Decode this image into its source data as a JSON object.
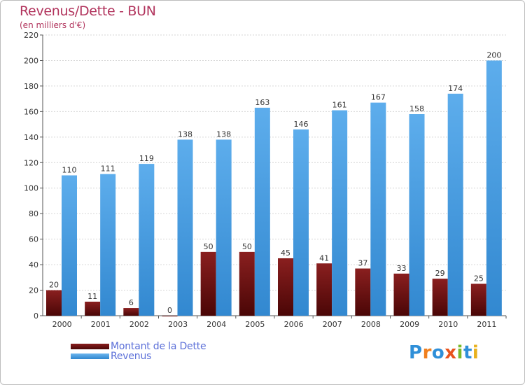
{
  "header": {
    "title": "Revenus/Dette - BUN",
    "subtitle": "(en milliers d'€)"
  },
  "legend": {
    "items": [
      {
        "label": "Montant de la Dette",
        "color": "#6b0e0e"
      },
      {
        "label": "Revenus",
        "color": "#4a9ee0"
      }
    ]
  },
  "logo": {
    "text": "Proxiti",
    "letter_colors": [
      "#2f8fd8",
      "#f07f1e",
      "#2f8fd8",
      "#e8531d",
      "#7ab929",
      "#2f8fd8",
      "#e8b11d"
    ]
  },
  "chart_data": {
    "type": "bar",
    "title": "Revenus/Dette - BUN",
    "subtitle": "(en milliers d'€)",
    "categories": [
      "2000",
      "2001",
      "2002",
      "2003",
      "2004",
      "2005",
      "2006",
      "2007",
      "2008",
      "2009",
      "2010",
      "2011"
    ],
    "series": [
      {
        "name": "Montant de la Dette",
        "values": [
          20,
          11,
          6,
          0,
          50,
          50,
          45,
          41,
          37,
          33,
          29,
          25
        ],
        "color": "#6b0e0e"
      },
      {
        "name": "Revenus",
        "values": [
          110,
          111,
          119,
          138,
          138,
          163,
          146,
          161,
          167,
          158,
          174,
          200
        ],
        "color": "#4a9ee0"
      }
    ],
    "ylim": [
      0,
      220
    ],
    "yticks": [
      0,
      20,
      40,
      60,
      80,
      100,
      120,
      140,
      160,
      180,
      200,
      220
    ],
    "grid": true,
    "legend": "bottom-left"
  }
}
